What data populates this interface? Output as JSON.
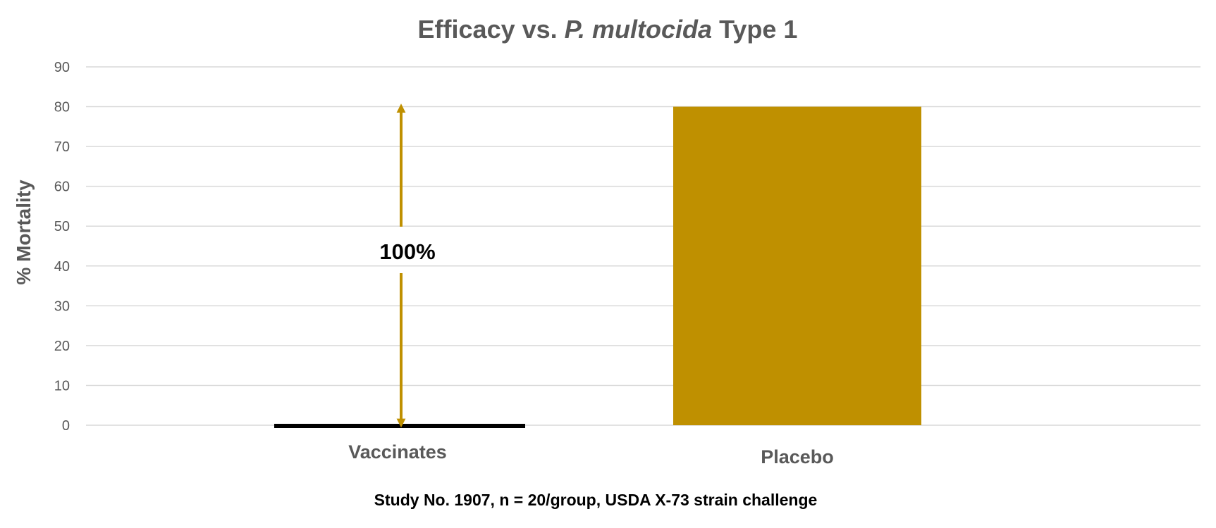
{
  "chart_data": {
    "type": "bar",
    "title_parts": [
      {
        "text": "Efficacy vs. ",
        "italic": false
      },
      {
        "text": "P. multocida",
        "italic": true
      },
      {
        "text": " Type 1",
        "italic": false
      }
    ],
    "categories": [
      "Vaccinates",
      "Placebo"
    ],
    "values": [
      0,
      80
    ],
    "ylabel": "% Mortality",
    "ylim": [
      0,
      90
    ],
    "yticks": [
      0,
      10,
      20,
      30,
      40,
      50,
      60,
      70,
      80,
      90
    ],
    "grid": true,
    "annotation": {
      "text": "100%",
      "from_value": 0,
      "to_value": 80,
      "category": "Vaccinates"
    },
    "footnote": "Study No. 1907,  n = 20/group, USDA X-73 strain challenge",
    "colors": {
      "bar": "#BF9000",
      "zero_bar": "#000000",
      "arrow": "#BF9000",
      "grid": "#D9D9D9",
      "text": "#595959"
    }
  }
}
